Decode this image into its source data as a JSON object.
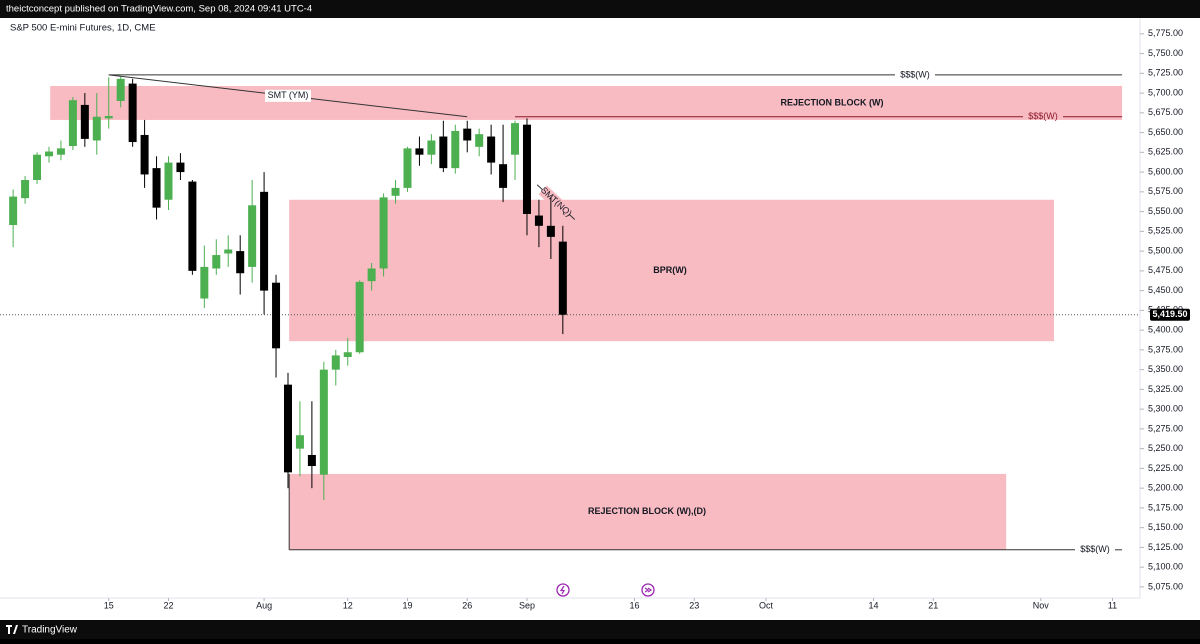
{
  "header": {
    "publisher": "theictconcept published on TradingView.com, Sep 08, 2024 09:41 UTC-4"
  },
  "chart_data": {
    "type": "candlestick",
    "title": "S&P 500 E-mini Futures, 1D, CME",
    "x": [
      0,
      1,
      2,
      3,
      4,
      5,
      6,
      7,
      8,
      9,
      10,
      11,
      12,
      13,
      14,
      15,
      16,
      17,
      18,
      19,
      20,
      21,
      22,
      23,
      24,
      25,
      26,
      27,
      28,
      29,
      30,
      31,
      32,
      33,
      34,
      35,
      36,
      37,
      38,
      39,
      40,
      41,
      42,
      43,
      44,
      45,
      46
    ],
    "open": [
      5533,
      5567,
      5590,
      5620,
      5622,
      5633,
      5685,
      5640,
      5668,
      5690,
      5712,
      5647,
      5605,
      5565,
      5612,
      5588,
      5440,
      5478,
      5497,
      5500,
      5480,
      5575,
      5460,
      5331,
      5250,
      5242,
      5217,
      5350,
      5366,
      5372,
      5462,
      5478,
      5570,
      5580,
      5630,
      5622,
      5645,
      5605,
      5655,
      5632,
      5645,
      5610,
      5622,
      5660,
      5545,
      5532,
      5512
    ],
    "high": [
      5578,
      5595,
      5625,
      5632,
      5640,
      5695,
      5700,
      5700,
      5720,
      5721,
      5718,
      5666,
      5620,
      5620,
      5624,
      5590,
      5507,
      5515,
      5520,
      5520,
      5590,
      5600,
      5470,
      5346,
      5310,
      5310,
      5360,
      5375,
      5390,
      5463,
      5485,
      5573,
      5590,
      5632,
      5645,
      5648,
      5665,
      5660,
      5665,
      5655,
      5660,
      5660,
      5665,
      5668,
      5565,
      5568,
      5532
    ],
    "low": [
      5505,
      5560,
      5585,
      5612,
      5615,
      5628,
      5632,
      5622,
      5655,
      5682,
      5632,
      5580,
      5540,
      5552,
      5590,
      5470,
      5428,
      5470,
      5480,
      5445,
      5460,
      5420,
      5340,
      5200,
      5215,
      5200,
      5185,
      5330,
      5355,
      5370,
      5450,
      5468,
      5560,
      5575,
      5608,
      5610,
      5600,
      5598,
      5625,
      5620,
      5597,
      5562,
      5590,
      5520,
      5505,
      5490,
      5395
    ],
    "close": [
      5569,
      5590,
      5622,
      5626,
      5630,
      5691,
      5642,
      5670,
      5671,
      5718,
      5638,
      5597,
      5555,
      5612,
      5600,
      5475,
      5480,
      5495,
      5502,
      5472,
      5558,
      5450,
      5377,
      5220,
      5267,
      5228,
      5350,
      5368,
      5372,
      5461,
      5478,
      5568,
      5580,
      5630,
      5622,
      5640,
      5605,
      5652,
      5640,
      5648,
      5612,
      5580,
      5662,
      5547,
      5532,
      5518,
      5419.5
    ],
    "up_color": "#4caf50",
    "down_color": "#000000",
    "xlim": [
      -1.1,
      94.3
    ],
    "xticks": [
      {
        "value": 8,
        "label": "15"
      },
      {
        "value": 13,
        "label": "22"
      },
      {
        "value": 21,
        "label": "Aug"
      },
      {
        "value": 28,
        "label": "12"
      },
      {
        "value": 33,
        "label": "19"
      },
      {
        "value": 38,
        "label": "26"
      },
      {
        "value": 43,
        "label": "Sep"
      },
      {
        "value": 52,
        "label": "16"
      },
      {
        "value": 57,
        "label": "23"
      },
      {
        "value": 63,
        "label": "Oct"
      },
      {
        "value": 72,
        "label": "14"
      },
      {
        "value": 77,
        "label": "21"
      },
      {
        "value": 86,
        "label": "Nov"
      },
      {
        "value": 92,
        "label": "11"
      }
    ],
    "ylim": [
      5061,
      5795
    ],
    "yticks": [
      {
        "value": 5075,
        "label": "5,075.00"
      },
      {
        "value": 5100,
        "label": "5,100.00"
      },
      {
        "value": 5125,
        "label": "5,125.00"
      },
      {
        "value": 5150,
        "label": "5,150.00"
      },
      {
        "value": 5175,
        "label": "5,175.00"
      },
      {
        "value": 5200,
        "label": "5,200.00"
      },
      {
        "value": 5225,
        "label": "5,225.00"
      },
      {
        "value": 5250,
        "label": "5,250.00"
      },
      {
        "value": 5275,
        "label": "5,275.00"
      },
      {
        "value": 5300,
        "label": "5,300.00"
      },
      {
        "value": 5325,
        "label": "5,325.00"
      },
      {
        "value": 5350,
        "label": "5,350.00"
      },
      {
        "value": 5375,
        "label": "5,375.00"
      },
      {
        "value": 5400,
        "label": "5,400.00"
      },
      {
        "value": 5425,
        "label": "5,425.00"
      },
      {
        "value": 5450,
        "label": "5,450.00"
      },
      {
        "value": 5475,
        "label": "5,475.00"
      },
      {
        "value": 5500,
        "label": "5,500.00"
      },
      {
        "value": 5525,
        "label": "5,525.00"
      },
      {
        "value": 5550,
        "label": "5,550.00"
      },
      {
        "value": 5575,
        "label": "5,575.00"
      },
      {
        "value": 5600,
        "label": "5,600.00"
      },
      {
        "value": 5625,
        "label": "5,625.00"
      },
      {
        "value": 5650,
        "label": "5,650.00"
      },
      {
        "value": 5675,
        "label": "5,675.00"
      },
      {
        "value": 5700,
        "label": "5,700.00"
      },
      {
        "value": 5725,
        "label": "5,725.00"
      },
      {
        "value": 5750,
        "label": "5,750.00"
      },
      {
        "value": 5775,
        "label": "5,775.00"
      }
    ],
    "grid": false,
    "last_price": {
      "value": 5419.5,
      "label": "5,419.50"
    },
    "zones": [
      {
        "label": "REJECTION BLOCK (W)",
        "x": [
          3.1,
          92.8
        ],
        "y": [
          5666,
          5709
        ],
        "color": "#f8bbc2"
      },
      {
        "label": "BPR(W)",
        "x": [
          23.1,
          87.1
        ],
        "y": [
          5386,
          5565
        ],
        "color": "#f8bbc2"
      },
      {
        "label": "REJECTION BLOCK (W),(D)",
        "x": [
          23.1,
          83.1
        ],
        "y": [
          5122,
          5218
        ],
        "color": "#f8bbc2"
      }
    ],
    "levels": [
      {
        "label": "$$$(W)",
        "x": [
          8,
          92.8
        ],
        "value": 5723,
        "color": "#333333"
      },
      {
        "label": "$$$(W)",
        "x": [
          42,
          92.8
        ],
        "value": 5670,
        "color": "#8b1a2b"
      },
      {
        "label": "$$$(W)",
        "x": [
          23.1,
          92.8
        ],
        "value": 5122,
        "color": "#333333"
      }
    ],
    "trendlines": [
      {
        "label": "SMT (YM)",
        "x": [
          8,
          38
        ],
        "y": [
          5723,
          5670
        ]
      },
      {
        "label": "SMT(NQ)",
        "x": [
          43.85,
          47
        ],
        "y": [
          5584,
          5540
        ]
      }
    ]
  },
  "footer": {
    "brand": "TradingView"
  }
}
